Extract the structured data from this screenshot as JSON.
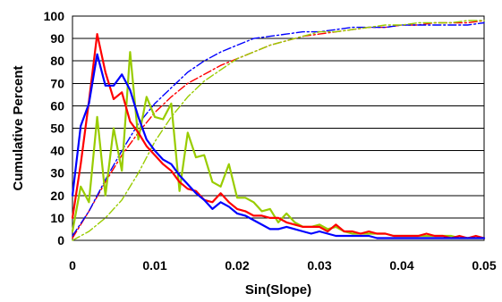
{
  "chart_data": {
    "type": "line",
    "title": "",
    "xlabel": "Sin(Slope)",
    "ylabel": "Cumulative Percent",
    "xlim": [
      0,
      0.05
    ],
    "ylim": [
      0,
      100
    ],
    "x_ticks": [
      0,
      0.01,
      0.02,
      0.03,
      0.04,
      0.05
    ],
    "x_tick_labels": [
      "0",
      "0.01",
      "0.02",
      "0.03",
      "0.04",
      "0.05"
    ],
    "y_ticks": [
      0,
      10,
      20,
      30,
      40,
      50,
      60,
      70,
      80,
      90,
      100
    ],
    "y_tick_labels": [
      "0",
      "10",
      "20",
      "30",
      "40",
      "50",
      "60",
      "70",
      "80",
      "90",
      "100"
    ],
    "grid": "horizontal",
    "legend": "none",
    "series": [
      {
        "color": "#ff0000",
        "style": "solid",
        "x": [
          0,
          0.001,
          0.002,
          0.003,
          0.004,
          0.005,
          0.006,
          0.007,
          0.008,
          0.009,
          0.01,
          0.011,
          0.012,
          0.013,
          0.014,
          0.015,
          0.016,
          0.017,
          0.018,
          0.019,
          0.02,
          0.021,
          0.022,
          0.023,
          0.024,
          0.025,
          0.026,
          0.027,
          0.028,
          0.029,
          0.03,
          0.031,
          0.032,
          0.033,
          0.034,
          0.035,
          0.036,
          0.037,
          0.038,
          0.039,
          0.04,
          0.041,
          0.042,
          0.043,
          0.044,
          0.045,
          0.046,
          0.047,
          0.048,
          0.049,
          0.05
        ],
        "y": [
          10,
          34,
          62,
          92,
          75,
          63,
          66,
          53,
          48,
          42,
          38,
          34,
          31,
          26,
          23,
          22,
          18,
          17,
          21,
          17,
          14,
          13,
          11,
          11,
          10,
          10,
          8,
          7,
          6,
          6,
          6,
          4,
          7,
          4,
          4,
          3,
          4,
          3,
          3,
          2,
          2,
          2,
          2,
          3,
          2,
          2,
          1,
          2,
          1,
          2,
          1
        ]
      },
      {
        "color": "#0000ff",
        "style": "solid",
        "x": [
          0,
          0.001,
          0.002,
          0.003,
          0.004,
          0.005,
          0.006,
          0.007,
          0.008,
          0.009,
          0.01,
          0.011,
          0.012,
          0.013,
          0.014,
          0.015,
          0.016,
          0.017,
          0.018,
          0.019,
          0.02,
          0.021,
          0.022,
          0.023,
          0.024,
          0.025,
          0.026,
          0.027,
          0.028,
          0.029,
          0.03,
          0.031,
          0.032,
          0.033,
          0.034,
          0.035,
          0.036,
          0.037,
          0.038,
          0.039,
          0.04,
          0.041,
          0.042,
          0.043,
          0.044,
          0.045,
          0.046,
          0.047,
          0.048,
          0.049,
          0.05
        ],
        "y": [
          20,
          51,
          61,
          83,
          69,
          69,
          74,
          67,
          55,
          45,
          40,
          36,
          34,
          29,
          25,
          21,
          18,
          14,
          17,
          15,
          12,
          11,
          9,
          7,
          5,
          5,
          6,
          5,
          4,
          3,
          4,
          3,
          2,
          2,
          2,
          2,
          2,
          1,
          1,
          1,
          1,
          1,
          1,
          1,
          1,
          1,
          1,
          1,
          1,
          1,
          1
        ]
      },
      {
        "color": "#99cc00",
        "style": "solid",
        "x": [
          0,
          0.001,
          0.002,
          0.003,
          0.004,
          0.005,
          0.006,
          0.007,
          0.008,
          0.009,
          0.01,
          0.011,
          0.012,
          0.013,
          0.014,
          0.015,
          0.016,
          0.017,
          0.018,
          0.019,
          0.02,
          0.021,
          0.022,
          0.023,
          0.024,
          0.025,
          0.026,
          0.027,
          0.028,
          0.029,
          0.03,
          0.031,
          0.032,
          0.033,
          0.034,
          0.035,
          0.036,
          0.037,
          0.038,
          0.039,
          0.04,
          0.041,
          0.042,
          0.043,
          0.044,
          0.045,
          0.046,
          0.047,
          0.048,
          0.049,
          0.05
        ],
        "y": [
          4,
          24,
          17,
          55,
          20,
          50,
          31,
          84,
          45,
          64,
          55,
          54,
          61,
          22,
          48,
          37,
          38,
          26,
          24,
          34,
          19,
          19,
          17,
          13,
          14,
          8,
          12,
          8,
          6,
          6,
          7,
          5,
          6,
          4,
          3,
          3,
          3,
          3,
          3,
          2,
          2,
          2,
          2,
          2,
          2,
          2,
          2,
          1,
          1,
          1,
          1
        ]
      },
      {
        "color": "#ff0000",
        "style": "dashdot",
        "x": [
          0,
          0.002,
          0.004,
          0.006,
          0.008,
          0.01,
          0.012,
          0.014,
          0.016,
          0.018,
          0.02,
          0.022,
          0.024,
          0.026,
          0.028,
          0.03,
          0.032,
          0.034,
          0.036,
          0.038,
          0.04,
          0.042,
          0.044,
          0.046,
          0.048,
          0.05
        ],
        "y": [
          1,
          13,
          26,
          38,
          48,
          57,
          64,
          70,
          74,
          78,
          81,
          84,
          87,
          89,
          91,
          92,
          93,
          94,
          95,
          95,
          96,
          96,
          97,
          97,
          97,
          98
        ]
      },
      {
        "color": "#0000ff",
        "style": "dashdot",
        "x": [
          0,
          0.002,
          0.004,
          0.006,
          0.008,
          0.01,
          0.012,
          0.014,
          0.016,
          0.018,
          0.02,
          0.022,
          0.024,
          0.026,
          0.028,
          0.03,
          0.032,
          0.034,
          0.036,
          0.038,
          0.04,
          0.042,
          0.044,
          0.046,
          0.048,
          0.05
        ],
        "y": [
          2,
          13,
          27,
          40,
          52,
          61,
          68,
          75,
          80,
          84,
          87,
          90,
          91,
          92,
          93,
          93,
          94,
          95,
          95,
          95,
          96,
          96,
          96,
          96,
          96,
          97
        ]
      },
      {
        "color": "#99cc00",
        "style": "dashdot",
        "x": [
          0,
          0.002,
          0.004,
          0.006,
          0.008,
          0.01,
          0.012,
          0.014,
          0.016,
          0.018,
          0.02,
          0.022,
          0.024,
          0.026,
          0.028,
          0.03,
          0.032,
          0.034,
          0.036,
          0.038,
          0.04,
          0.042,
          0.044,
          0.046,
          0.048,
          0.05
        ],
        "y": [
          0,
          4,
          10,
          18,
          30,
          44,
          55,
          64,
          71,
          76,
          81,
          84,
          87,
          89,
          91,
          93,
          93,
          94,
          95,
          96,
          96,
          97,
          97,
          97,
          98,
          98
        ]
      }
    ]
  }
}
